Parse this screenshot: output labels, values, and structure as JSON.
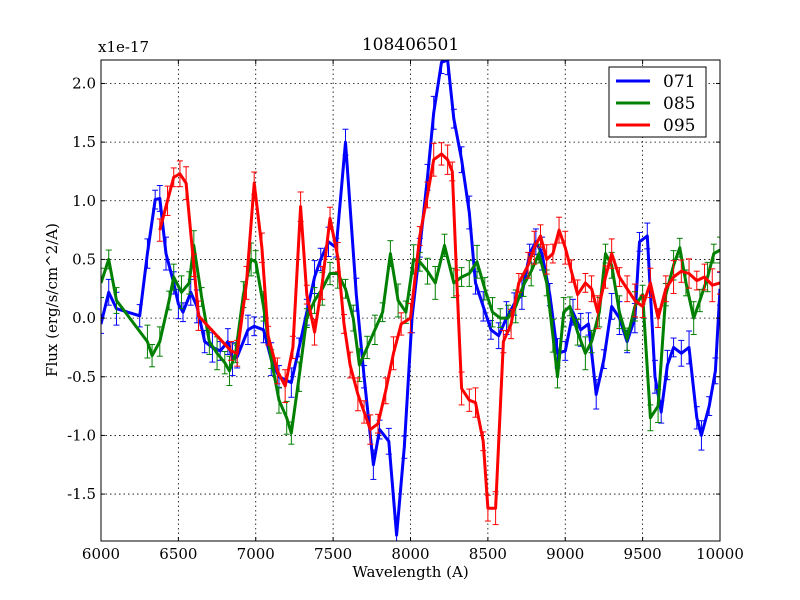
{
  "chart_data": {
    "type": "line",
    "title": "108406501",
    "xlabel": "Wavelength (A)",
    "ylabel": "Flux (erg/s/cm^2/A)",
    "offset_text": "x1e-17",
    "xlim": [
      6000,
      10000
    ],
    "ylim": [
      -1.9,
      2.2
    ],
    "xticks": [
      6000,
      6500,
      7000,
      7500,
      8000,
      8500,
      9000,
      9500,
      10000
    ],
    "xtick_labels": [
      "6000",
      "6500",
      "7000",
      "7500",
      "8000",
      "8500",
      "9000",
      "9500",
      "10000"
    ],
    "yticks": [
      -1.5,
      -1.0,
      -0.5,
      0.0,
      0.5,
      1.0,
      1.5,
      2.0
    ],
    "ytick_labels": [
      "-1.5",
      "-1.0",
      "-0.5",
      "0.0",
      "0.5",
      "1.0",
      "1.5",
      "2.0"
    ],
    "grid": true,
    "legend_position": "top-right",
    "series": [
      {
        "name": "071",
        "color": "#0000ff",
        "points": [
          [
            6000,
            -0.05
          ],
          [
            6050,
            0.22
          ],
          [
            6100,
            0.08
          ],
          [
            6250,
            0.02
          ],
          [
            6300,
            0.55
          ],
          [
            6350,
            1.01
          ],
          [
            6380,
            1.02
          ],
          [
            6420,
            0.55
          ],
          [
            6470,
            0.3
          ],
          [
            6500,
            0.12
          ],
          [
            6530,
            0.05
          ],
          [
            6580,
            0.22
          ],
          [
            6620,
            0.1
          ],
          [
            6670,
            -0.2
          ],
          [
            6720,
            -0.25
          ],
          [
            6770,
            -0.28
          ],
          [
            6820,
            -0.2
          ],
          [
            6850,
            -0.35
          ],
          [
            6880,
            -0.33
          ],
          [
            6950,
            -0.1
          ],
          [
            6990,
            -0.07
          ],
          [
            7050,
            -0.1
          ],
          [
            7100,
            -0.35
          ],
          [
            7150,
            -0.5
          ],
          [
            7230,
            -0.55
          ],
          [
            7280,
            -0.25
          ],
          [
            7330,
            0.05
          ],
          [
            7380,
            0.35
          ],
          [
            7420,
            0.5
          ],
          [
            7470,
            0.65
          ],
          [
            7520,
            0.6
          ],
          [
            7580,
            1.5
          ],
          [
            7650,
            0.2
          ],
          [
            7700,
            -0.5
          ],
          [
            7760,
            -1.25
          ],
          [
            7800,
            -0.95
          ],
          [
            7860,
            -1.05
          ],
          [
            7910,
            -1.85
          ],
          [
            7960,
            -1.1
          ],
          [
            8010,
            0.0
          ],
          [
            8060,
            0.6
          ],
          [
            8110,
            1.2
          ],
          [
            8150,
            1.75
          ],
          [
            8200,
            2.18
          ],
          [
            8240,
            2.2
          ],
          [
            8280,
            1.7
          ],
          [
            8330,
            1.35
          ],
          [
            8380,
            0.9
          ],
          [
            8420,
            0.3
          ],
          [
            8470,
            0.1
          ],
          [
            8520,
            -0.1
          ],
          [
            8570,
            -0.15
          ],
          [
            8620,
            0.0
          ],
          [
            8670,
            0.12
          ],
          [
            8720,
            0.2
          ],
          [
            8770,
            0.55
          ],
          [
            8810,
            0.65
          ],
          [
            8850,
            0.55
          ],
          [
            8900,
            0.2
          ],
          [
            8950,
            -0.3
          ],
          [
            9000,
            -0.28
          ],
          [
            9050,
            0.05
          ],
          [
            9100,
            -0.1
          ],
          [
            9150,
            -0.05
          ],
          [
            9200,
            -0.65
          ],
          [
            9250,
            -0.35
          ],
          [
            9300,
            0.1
          ],
          [
            9350,
            0.0
          ],
          [
            9400,
            -0.2
          ],
          [
            9450,
            0.0
          ],
          [
            9480,
            0.65
          ],
          [
            9530,
            0.7
          ],
          [
            9580,
            -0.5
          ],
          [
            9620,
            -0.8
          ],
          [
            9660,
            -0.4
          ],
          [
            9700,
            -0.25
          ],
          [
            9750,
            -0.3
          ],
          [
            9800,
            -0.25
          ],
          [
            9850,
            -0.85
          ],
          [
            9880,
            -1.0
          ],
          [
            9930,
            -0.75
          ],
          [
            9970,
            -0.45
          ],
          [
            10000,
            0.25
          ]
        ]
      },
      {
        "name": "085",
        "color": "#008000",
        "points": [
          [
            6000,
            0.3
          ],
          [
            6050,
            0.5
          ],
          [
            6100,
            0.15
          ],
          [
            6300,
            -0.2
          ],
          [
            6330,
            -0.32
          ],
          [
            6380,
            -0.2
          ],
          [
            6440,
            0.15
          ],
          [
            6470,
            0.35
          ],
          [
            6520,
            0.22
          ],
          [
            6570,
            0.3
          ],
          [
            6600,
            0.62
          ],
          [
            6650,
            0.18
          ],
          [
            6700,
            -0.2
          ],
          [
            6750,
            -0.3
          ],
          [
            6800,
            -0.38
          ],
          [
            6830,
            -0.45
          ],
          [
            6870,
            -0.3
          ],
          [
            6920,
            0.2
          ],
          [
            6970,
            0.5
          ],
          [
            7000,
            0.48
          ],
          [
            7050,
            0.1
          ],
          [
            7100,
            -0.35
          ],
          [
            7150,
            -0.7
          ],
          [
            7200,
            -0.85
          ],
          [
            7230,
            -0.98
          ],
          [
            7280,
            -0.5
          ],
          [
            7330,
            0.0
          ],
          [
            7380,
            0.15
          ],
          [
            7430,
            0.25
          ],
          [
            7480,
            0.38
          ],
          [
            7530,
            0.38
          ],
          [
            7580,
            0.25
          ],
          [
            7630,
            0.0
          ],
          [
            7670,
            -0.4
          ],
          [
            7720,
            -0.25
          ],
          [
            7770,
            -0.1
          ],
          [
            7820,
            0.05
          ],
          [
            7870,
            0.55
          ],
          [
            7920,
            0.15
          ],
          [
            7970,
            0.05
          ],
          [
            8020,
            0.5
          ],
          [
            8060,
            0.48
          ],
          [
            8110,
            0.4
          ],
          [
            8160,
            0.3
          ],
          [
            8220,
            0.62
          ],
          [
            8280,
            0.3
          ],
          [
            8330,
            0.35
          ],
          [
            8380,
            0.38
          ],
          [
            8430,
            0.48
          ],
          [
            8480,
            0.25
          ],
          [
            8530,
            0.05
          ],
          [
            8580,
            0.0
          ],
          [
            8630,
            0.0
          ],
          [
            8680,
            0.1
          ],
          [
            8730,
            0.28
          ],
          [
            8780,
            0.4
          ],
          [
            8830,
            0.55
          ],
          [
            8880,
            0.3
          ],
          [
            8920,
            -0.15
          ],
          [
            8950,
            -0.5
          ],
          [
            8990,
            0.05
          ],
          [
            9030,
            0.1
          ],
          [
            9080,
            -0.12
          ],
          [
            9130,
            -0.3
          ],
          [
            9170,
            -0.2
          ],
          [
            9220,
            0.05
          ],
          [
            9260,
            0.55
          ],
          [
            9300,
            0.45
          ],
          [
            9350,
            0.05
          ],
          [
            9400,
            -0.18
          ],
          [
            9450,
            0.1
          ],
          [
            9500,
            0.2
          ],
          [
            9550,
            -0.85
          ],
          [
            9600,
            -0.75
          ],
          [
            9650,
            0.2
          ],
          [
            9700,
            0.45
          ],
          [
            9740,
            0.6
          ],
          [
            9780,
            0.3
          ],
          [
            9830,
            0.0
          ],
          [
            9870,
            0.15
          ],
          [
            9920,
            0.35
          ],
          [
            9960,
            0.55
          ],
          [
            10000,
            0.58
          ]
        ]
      },
      {
        "name": "095",
        "color": "#ff0000",
        "points": [
          [
            6380,
            0.75
          ],
          [
            6430,
            1.0
          ],
          [
            6470,
            1.2
          ],
          [
            6510,
            1.23
          ],
          [
            6550,
            1.15
          ],
          [
            6600,
            0.45
          ],
          [
            6630,
            0.02
          ],
          [
            6840,
            -0.28
          ],
          [
            6880,
            -0.3
          ],
          [
            6940,
            0.3
          ],
          [
            6990,
            1.15
          ],
          [
            7040,
            0.6
          ],
          [
            7080,
            -0.15
          ],
          [
            7140,
            -0.45
          ],
          [
            7190,
            -0.58
          ],
          [
            7240,
            -0.25
          ],
          [
            7290,
            0.95
          ],
          [
            7330,
            0.2
          ],
          [
            7380,
            -0.12
          ],
          [
            7430,
            0.3
          ],
          [
            7480,
            0.85
          ],
          [
            7530,
            0.52
          ],
          [
            7570,
            -0.05
          ],
          [
            7610,
            -0.4
          ],
          [
            7660,
            -0.65
          ],
          [
            7700,
            -0.8
          ],
          [
            7740,
            -0.95
          ],
          [
            7790,
            -0.9
          ],
          [
            7840,
            -0.62
          ],
          [
            7890,
            -0.3
          ],
          [
            7940,
            -0.05
          ],
          [
            8000,
            0.0
          ],
          [
            8060,
            0.7
          ],
          [
            8110,
            1.05
          ],
          [
            8150,
            1.35
          ],
          [
            8200,
            1.4
          ],
          [
            8240,
            1.35
          ],
          [
            8270,
            1.25
          ],
          [
            8300,
            0.3
          ],
          [
            8330,
            -0.6
          ],
          [
            8380,
            -0.7
          ],
          [
            8420,
            -0.72
          ],
          [
            8470,
            -1.05
          ],
          [
            8500,
            -1.62
          ],
          [
            8550,
            -1.62
          ],
          [
            8600,
            -0.2
          ],
          [
            8650,
            -0.05
          ],
          [
            8700,
            0.3
          ],
          [
            8760,
            0.45
          ],
          [
            8800,
            0.6
          ],
          [
            8840,
            0.7
          ],
          [
            8880,
            0.5
          ],
          [
            8920,
            0.55
          ],
          [
            8960,
            0.75
          ],
          [
            9000,
            0.6
          ],
          [
            9040,
            0.4
          ],
          [
            9080,
            0.2
          ],
          [
            9130,
            0.3
          ],
          [
            9170,
            0.25
          ],
          [
            9210,
            0.05
          ],
          [
            9260,
            0.35
          ],
          [
            9300,
            0.55
          ],
          [
            9350,
            0.35
          ],
          [
            9400,
            0.25
          ],
          [
            9450,
            0.15
          ],
          [
            9500,
            0.1
          ],
          [
            9550,
            0.3
          ],
          [
            9600,
            0.0
          ],
          [
            9650,
            0.25
          ],
          [
            9700,
            0.35
          ],
          [
            9750,
            0.4
          ],
          [
            9800,
            0.38
          ],
          [
            9850,
            0.32
          ],
          [
            9900,
            0.35
          ],
          [
            9950,
            0.28
          ],
          [
            10000,
            0.3
          ]
        ]
      }
    ]
  }
}
